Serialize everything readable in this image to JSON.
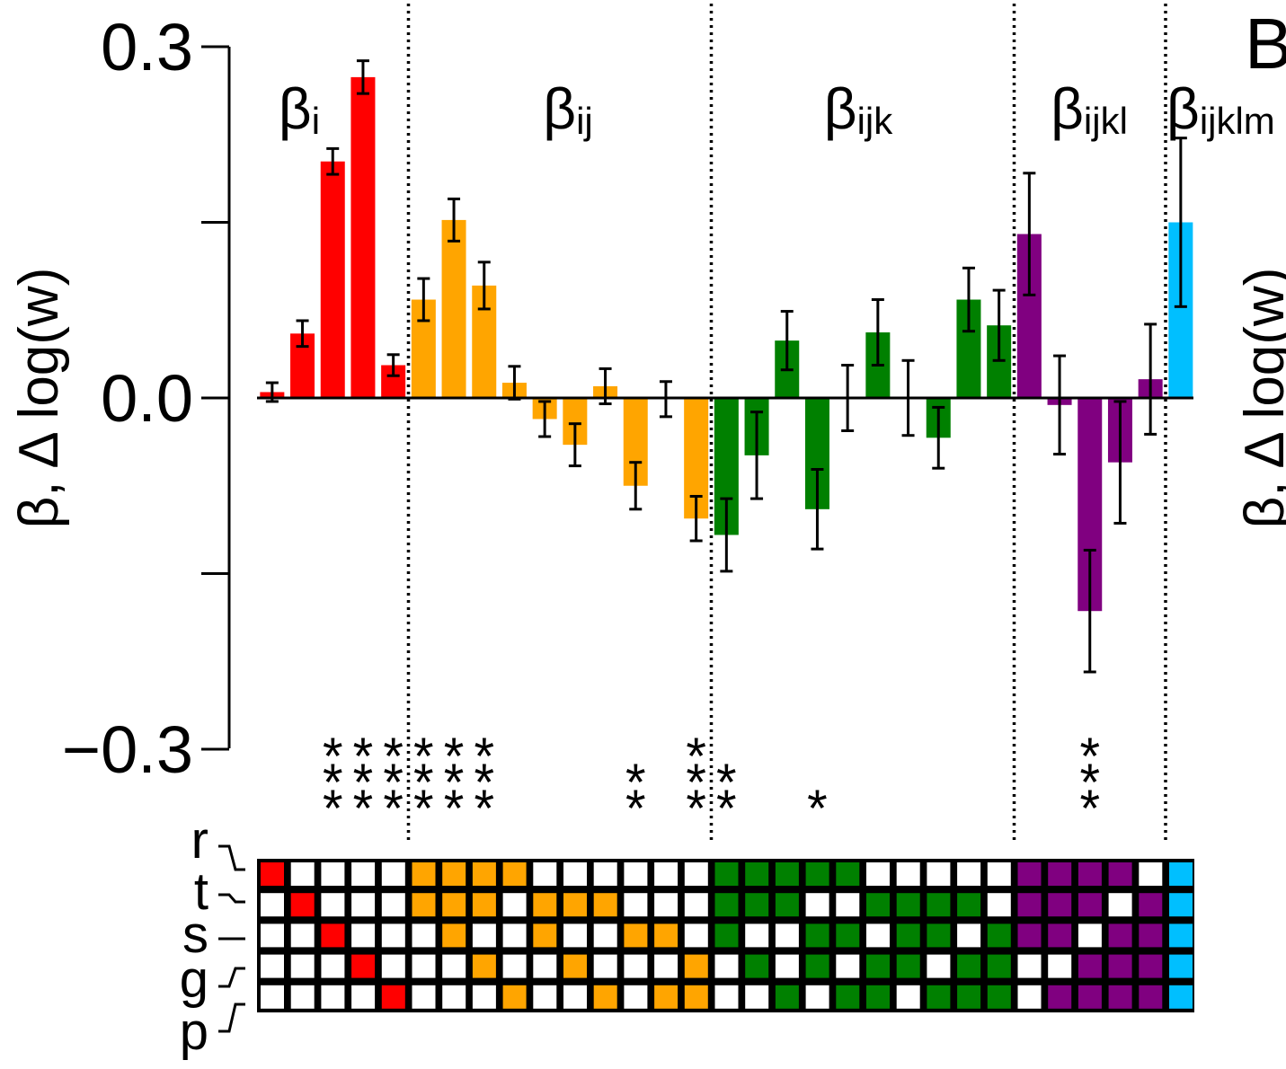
{
  "panel_label": "B",
  "chart_data": {
    "type": "bar",
    "ylabel": "β, Δ log(w)",
    "ylim": [
      -0.3,
      0.3
    ],
    "yticks": [
      {
        "value": 0.3,
        "label": "0.3"
      },
      {
        "value": 0.15,
        "label": ""
      },
      {
        "value": 0.0,
        "label": "0.0"
      },
      {
        "value": -0.15,
        "label": ""
      },
      {
        "value": -0.3,
        "label": "−0.3"
      }
    ],
    "groups": [
      {
        "label": "β",
        "sub": "i",
        "color": "#ff0000",
        "start": 0,
        "count": 5
      },
      {
        "label": "β",
        "sub": "ij",
        "color": "#ffa500",
        "start": 5,
        "count": 10
      },
      {
        "label": "β",
        "sub": "ijk",
        "color": "#008000",
        "start": 15,
        "count": 10
      },
      {
        "label": "β",
        "sub": "ijkl",
        "color": "#800080",
        "start": 25,
        "count": 5
      },
      {
        "label": "β",
        "sub": "ijklm",
        "color": "#00bfff",
        "start": 30,
        "count": 1
      }
    ],
    "values": [
      0.005,
      0.055,
      0.202,
      0.274,
      0.028,
      0.084,
      0.152,
      0.096,
      0.013,
      -0.018,
      -0.04,
      0.01,
      -0.075,
      -0.001,
      -0.103,
      -0.117,
      -0.049,
      0.049,
      -0.095,
      0.0,
      0.056,
      0.0,
      -0.034,
      0.084,
      0.062,
      0.14,
      -0.006,
      -0.182,
      -0.055,
      0.016,
      0.15
    ],
    "errors": [
      0.008,
      0.011,
      0.011,
      0.014,
      0.009,
      0.018,
      0.018,
      0.02,
      0.014,
      0.015,
      0.018,
      0.015,
      0.02,
      0.015,
      0.019,
      0.031,
      0.037,
      0.025,
      0.034,
      0.028,
      0.028,
      0.032,
      0.026,
      0.027,
      0.03,
      0.052,
      0.042,
      0.052,
      0.052,
      0.047,
      0.072
    ],
    "significance": [
      "",
      "",
      "***",
      "***",
      "***",
      "***",
      "***",
      "***",
      "",
      "",
      "",
      "",
      "**",
      "",
      "***",
      "**",
      "",
      "",
      "*",
      "",
      "",
      "",
      "",
      "",
      "",
      "",
      "",
      "***",
      "",
      "",
      ""
    ],
    "matrix_rows": [
      "r",
      "t",
      "s",
      "g",
      "p"
    ],
    "matrix": [
      [
        1,
        0,
        0,
        0,
        0,
        1,
        1,
        1,
        1,
        0,
        0,
        0,
        0,
        0,
        0,
        1,
        1,
        1,
        1,
        1,
        0,
        0,
        0,
        0,
        0,
        1,
        1,
        1,
        1,
        0,
        1
      ],
      [
        0,
        1,
        0,
        0,
        0,
        1,
        1,
        1,
        0,
        1,
        1,
        1,
        0,
        0,
        0,
        1,
        1,
        1,
        0,
        0,
        1,
        1,
        1,
        1,
        0,
        1,
        1,
        1,
        0,
        1,
        1
      ],
      [
        0,
        0,
        1,
        0,
        0,
        0,
        1,
        0,
        0,
        1,
        0,
        0,
        1,
        1,
        0,
        1,
        0,
        0,
        1,
        1,
        0,
        1,
        1,
        0,
        1,
        1,
        1,
        0,
        1,
        1,
        1
      ],
      [
        0,
        0,
        0,
        1,
        0,
        0,
        0,
        1,
        0,
        0,
        1,
        0,
        0,
        0,
        1,
        0,
        1,
        0,
        1,
        0,
        1,
        1,
        0,
        1,
        1,
        0,
        0,
        1,
        1,
        1,
        1
      ],
      [
        0,
        0,
        0,
        0,
        1,
        0,
        0,
        0,
        1,
        0,
        0,
        1,
        0,
        1,
        1,
        0,
        0,
        1,
        0,
        1,
        1,
        0,
        1,
        1,
        1,
        0,
        1,
        1,
        1,
        1,
        1
      ]
    ],
    "grid": false,
    "legend": "none"
  },
  "right_panel_ylabel": "β, Δ log(w)"
}
